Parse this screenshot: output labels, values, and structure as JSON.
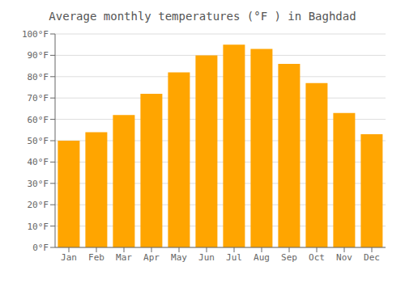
{
  "chart_data": {
    "type": "bar",
    "title": "Average monthly temperatures (°F ) in Baghdad",
    "categories": [
      "Jan",
      "Feb",
      "Mar",
      "Apr",
      "May",
      "Jun",
      "Jul",
      "Aug",
      "Sep",
      "Oct",
      "Nov",
      "Dec"
    ],
    "values": [
      50,
      54,
      62,
      72,
      82,
      90,
      95,
      93,
      86,
      77,
      63,
      53
    ],
    "color": "#FFA500",
    "ylim": [
      0,
      100
    ],
    "yticks": [
      {
        "value": 0,
        "label": "0°F"
      },
      {
        "value": 10,
        "label": "10°F"
      },
      {
        "value": 20,
        "label": "20°F"
      },
      {
        "value": 30,
        "label": "30°F"
      },
      {
        "value": 40,
        "label": "40°F"
      },
      {
        "value": 50,
        "label": "50°F"
      },
      {
        "value": 60,
        "label": "60°F"
      },
      {
        "value": 70,
        "label": "70°F"
      },
      {
        "value": 80,
        "label": "80°F"
      },
      {
        "value": 90,
        "label": "90°F"
      },
      {
        "value": 100,
        "label": "100°F"
      }
    ],
    "grid": true
  }
}
